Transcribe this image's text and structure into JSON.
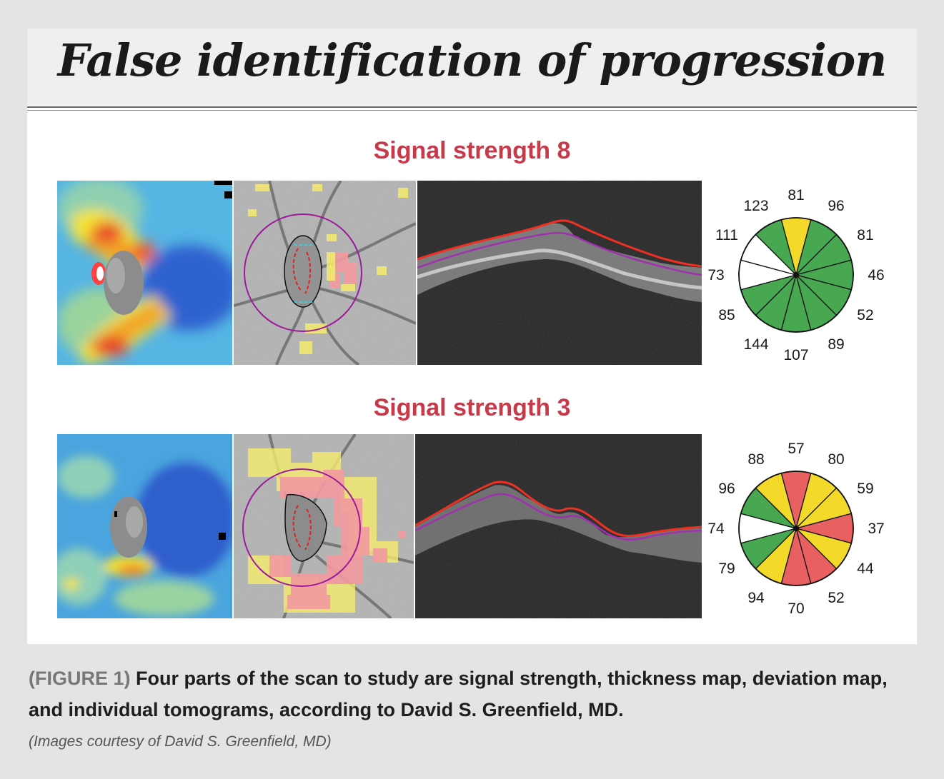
{
  "title": "False identification of progression",
  "rows": [
    {
      "label": "Signal strength 8",
      "sector_values": [
        "81",
        "96",
        "81",
        "46",
        "52",
        "89",
        "107",
        "144",
        "85",
        "73",
        "111",
        "123"
      ],
      "sector_colors": [
        "#f2d92a",
        "#48a852",
        "#48a852",
        "#48a852",
        "#48a852",
        "#48a852",
        "#48a852",
        "#48a852",
        "#48a852",
        "#ffffff",
        "#ffffff",
        "#48a852"
      ]
    },
    {
      "label": "Signal strength 3",
      "sector_values": [
        "57",
        "80",
        "59",
        "37",
        "44",
        "52",
        "70",
        "94",
        "79",
        "74",
        "96",
        "88"
      ],
      "sector_colors": [
        "#e96060",
        "#f2d92a",
        "#f2d92a",
        "#e96060",
        "#f2d92a",
        "#e96060",
        "#e96060",
        "#f2d92a",
        "#48a852",
        "#ffffff",
        "#48a852",
        "#f2d92a"
      ]
    }
  ],
  "caption": {
    "figure_label": "(FIGURE 1)",
    "text": "Four parts of the scan to study are signal strength, thickness map, deviation map, and individual tomograms, according to David S. Greenfield, MD.",
    "credit": "(Images courtesy of David S. Greenfield, MD)"
  },
  "colors": {
    "title_red": "#c8394a",
    "green": "#48a852",
    "yellow": "#f2d92a",
    "red": "#e96060",
    "white": "#ffffff"
  }
}
